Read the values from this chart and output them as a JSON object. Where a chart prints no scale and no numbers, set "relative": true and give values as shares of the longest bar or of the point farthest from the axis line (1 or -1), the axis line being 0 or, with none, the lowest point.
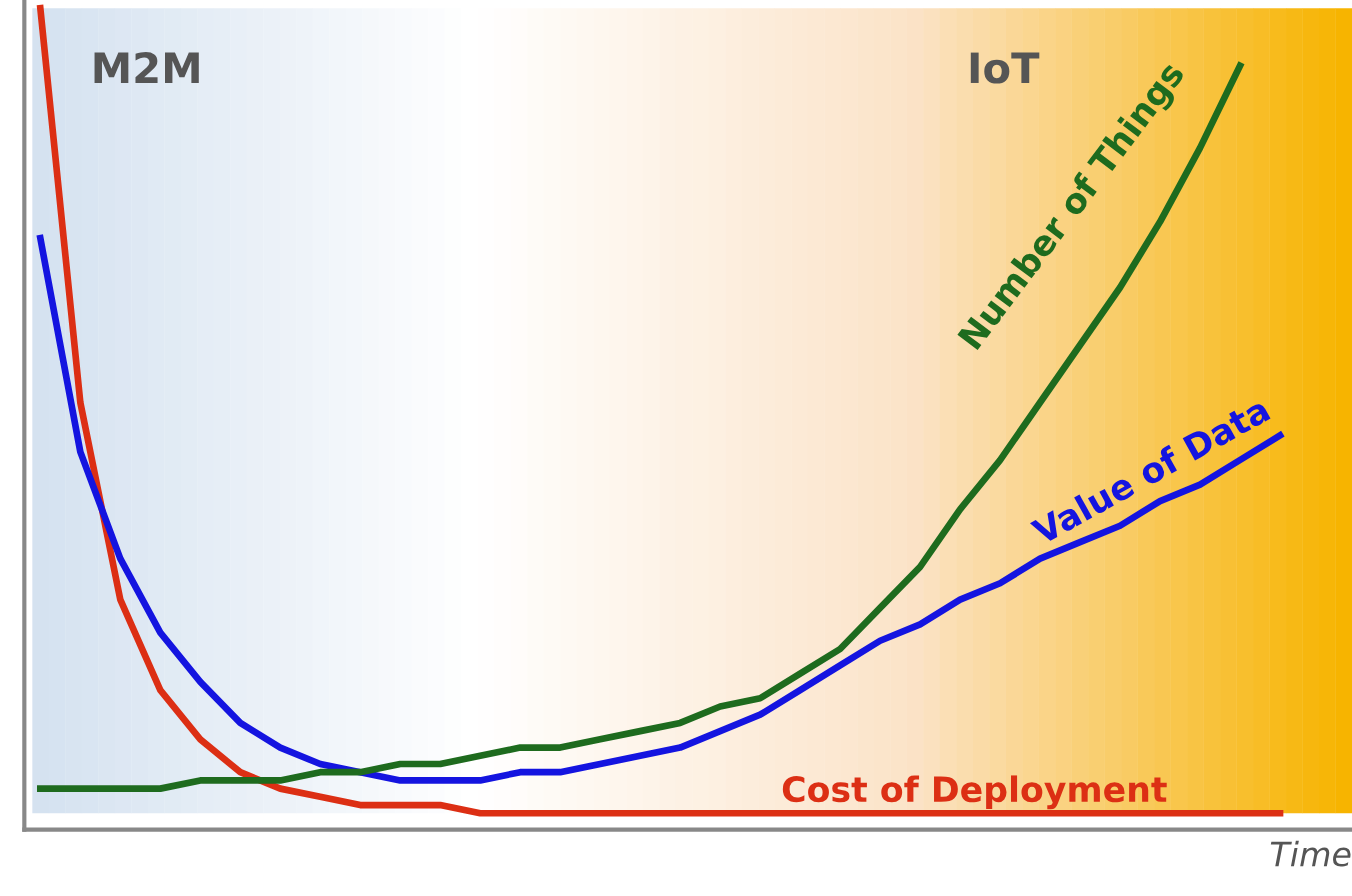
{
  "chart_data": {
    "type": "line",
    "relative": true,
    "xlabel": "Time",
    "annotations": [
      "M2M",
      "IoT"
    ],
    "categories": [
      null,
      null,
      null,
      null,
      null,
      null,
      null,
      null,
      null,
      null,
      null,
      null,
      null,
      null,
      null,
      null,
      null,
      null,
      null,
      null,
      null,
      null,
      null,
      null,
      null,
      null,
      null,
      null,
      null,
      null,
      null,
      null
    ],
    "series": [
      {
        "name": "Cost of Deployment",
        "color": "#dc2f14",
        "values": [
          1.0,
          0.52,
          0.28,
          0.17,
          0.11,
          0.07,
          0.05,
          0.04,
          0.03,
          0.03,
          0.03,
          0.02,
          0.02,
          0.02,
          0.02,
          0.02,
          0.02,
          0.02,
          0.02,
          0.02,
          0.02,
          0.02,
          0.02,
          0.02,
          0.02,
          0.02,
          0.02,
          0.02,
          0.02,
          0.02,
          0.02,
          0.02
        ]
      },
      {
        "name": "Value of Data",
        "color": "#1414e0",
        "values": [
          0.72,
          0.46,
          0.33,
          0.24,
          0.18,
          0.13,
          0.1,
          0.08,
          0.07,
          0.06,
          0.06,
          0.06,
          0.07,
          0.07,
          0.08,
          0.09,
          0.1,
          0.12,
          0.14,
          0.17,
          0.2,
          0.23,
          0.25,
          0.28,
          0.3,
          0.33,
          0.35,
          0.37,
          0.4,
          0.42,
          0.45,
          0.48
        ]
      },
      {
        "name": "Number of Things",
        "color": "#1e6b1e",
        "values": [
          0.05,
          0.05,
          0.05,
          0.05,
          0.06,
          0.06,
          0.06,
          0.07,
          0.07,
          0.08,
          0.08,
          0.09,
          0.1,
          0.1,
          0.11,
          0.12,
          0.13,
          0.15,
          0.16,
          0.19,
          0.22,
          0.27,
          0.32,
          0.39,
          0.45,
          0.52,
          0.59,
          0.66,
          0.74,
          0.83,
          0.93,
          null
        ]
      }
    ],
    "legend": false,
    "marker": "none",
    "line_style": "solid"
  }
}
